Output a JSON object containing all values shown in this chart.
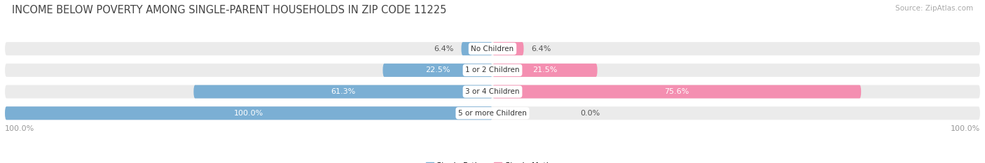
{
  "title": "INCOME BELOW POVERTY AMONG SINGLE-PARENT HOUSEHOLDS IN ZIP CODE 11225",
  "source": "Source: ZipAtlas.com",
  "categories": [
    "No Children",
    "1 or 2 Children",
    "3 or 4 Children",
    "5 or more Children"
  ],
  "single_father": [
    6.4,
    22.5,
    61.3,
    100.0
  ],
  "single_mother": [
    6.4,
    21.5,
    75.6,
    0.0
  ],
  "father_color": "#7bafd4",
  "mother_color": "#f48fb1",
  "bar_bg_color": "#ebebeb",
  "title_fontsize": 10.5,
  "source_fontsize": 7.5,
  "tick_fontsize": 8,
  "bar_label_fontsize": 8,
  "cat_label_fontsize": 7.5,
  "axis_max": 100.0,
  "background_color": "#ffffff",
  "bar_height": 0.62
}
